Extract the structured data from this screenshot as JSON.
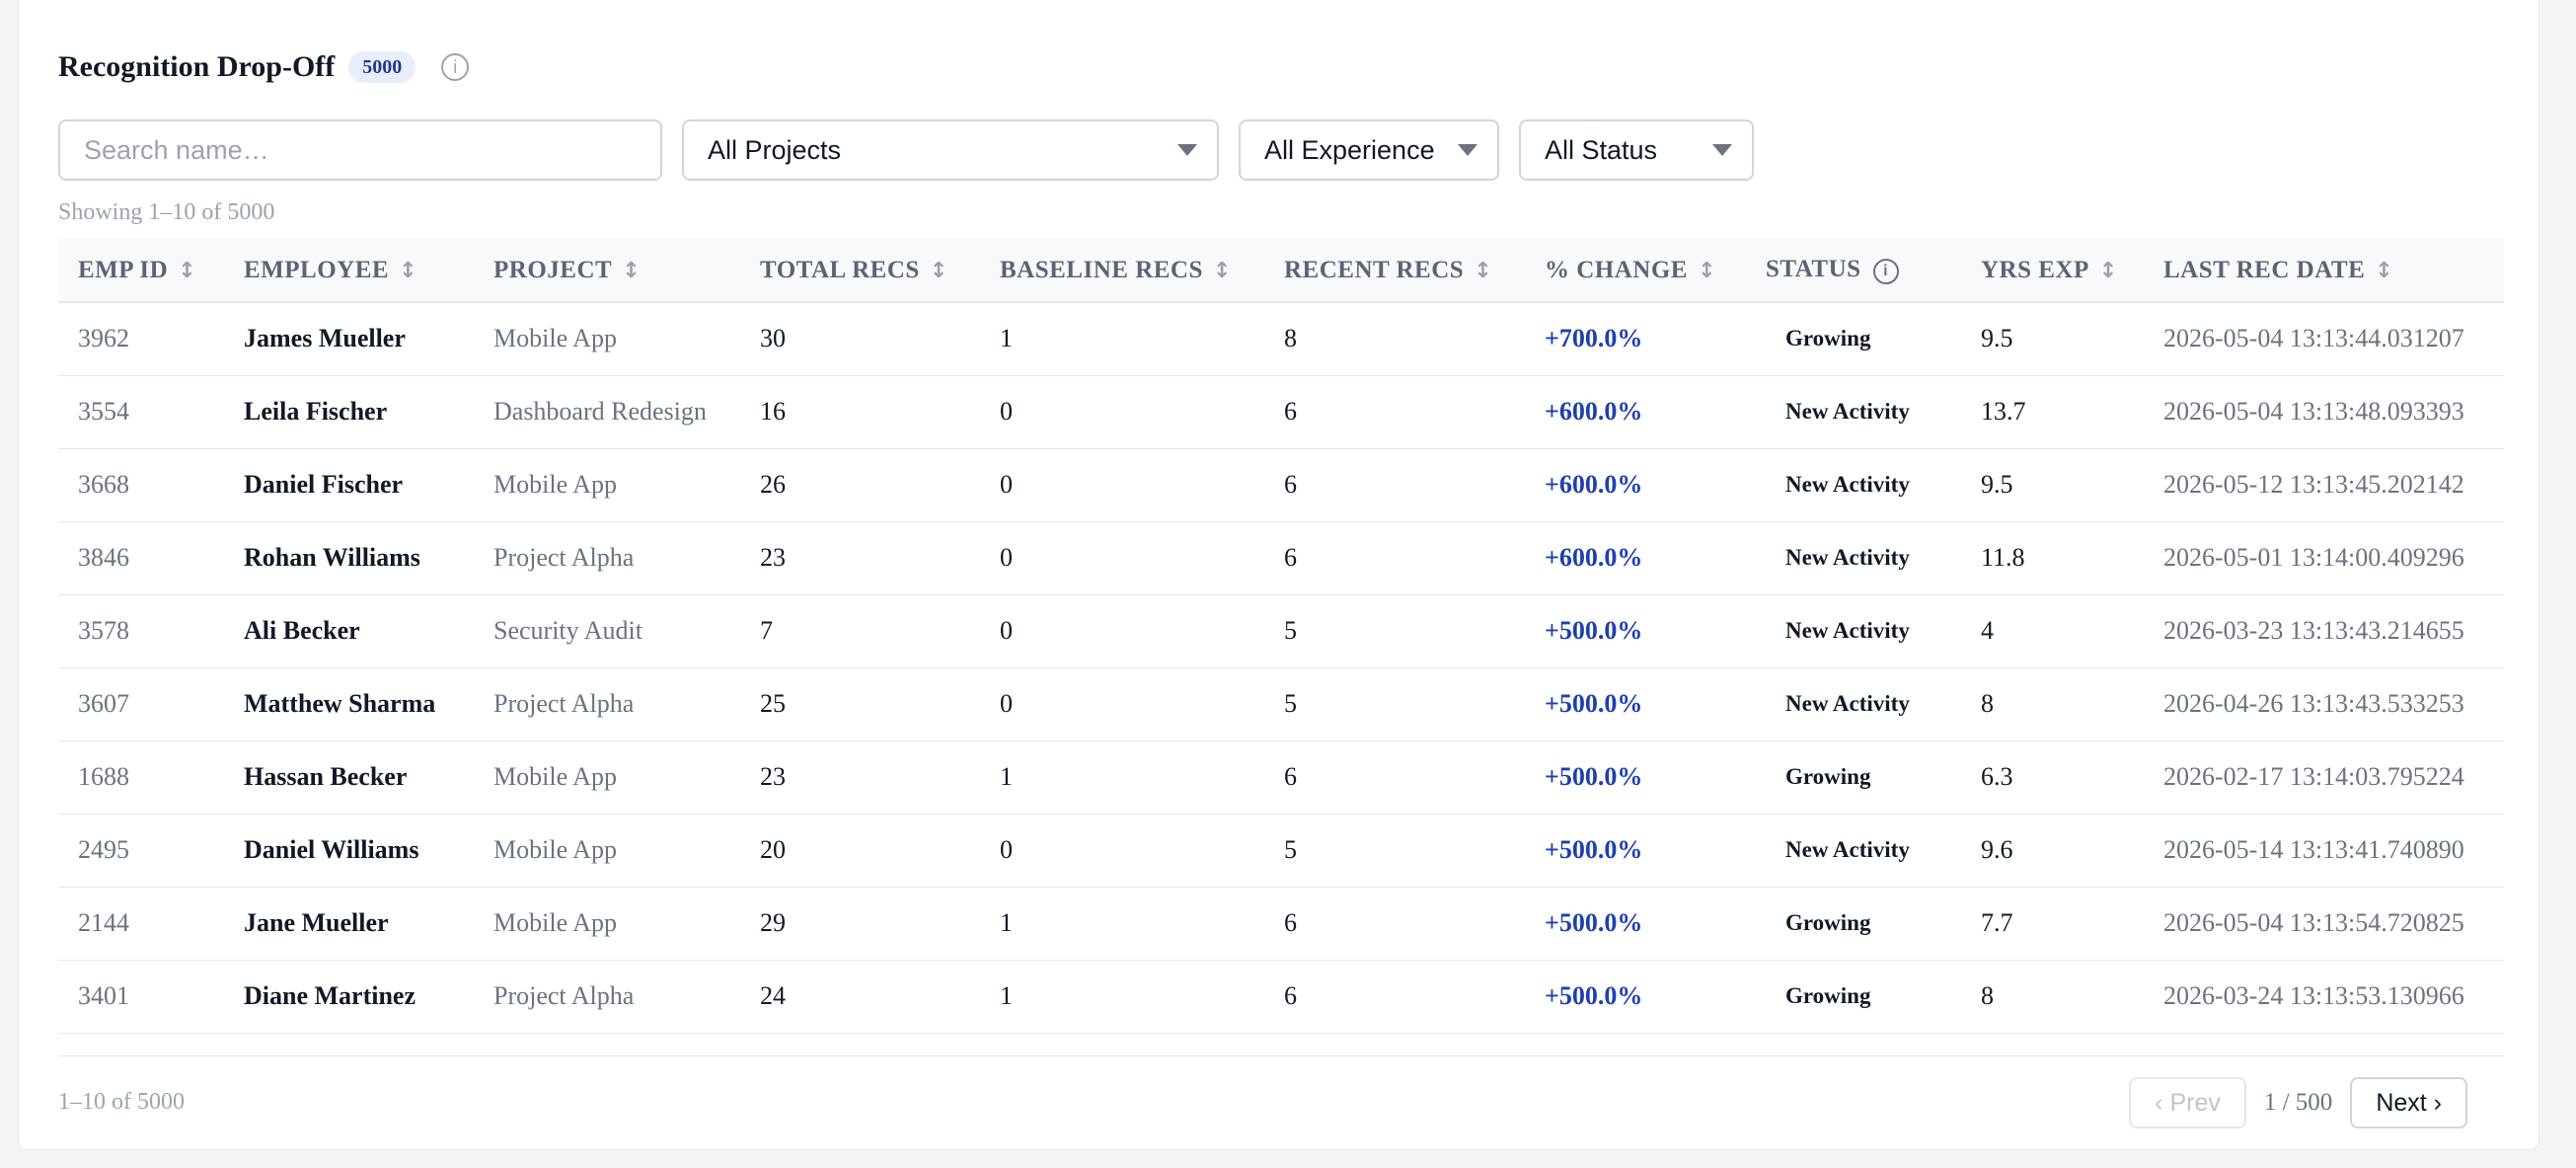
{
  "header": {
    "title": "Recognition Drop-Off",
    "count_badge": "5000",
    "info_icon": "info-icon",
    "info_glyph": "i"
  },
  "filters": {
    "search_placeholder": "Search name…",
    "project_select": "All Projects",
    "experience_select": "All Experience",
    "status_select": "All Status"
  },
  "showing_text": "Showing 1–10 of 5000",
  "table": {
    "columns": [
      "EMP ID",
      "EMPLOYEE",
      "PROJECT",
      "TOTAL RECS",
      "BASELINE RECS",
      "RECENT RECS",
      "% CHANGE",
      "STATUS",
      "YRS EXP",
      "LAST REC DATE"
    ],
    "sort_glyph": "↕",
    "status_info_glyph": "i",
    "rows": [
      {
        "id": "3962",
        "employee": "James Mueller",
        "project": "Mobile App",
        "total": "30",
        "baseline": "1",
        "recent": "8",
        "change": "+700.0%",
        "status": "Growing",
        "yrs": "9.5",
        "date": "2026-05-04 13:13:44.031207"
      },
      {
        "id": "3554",
        "employee": "Leila Fischer",
        "project": "Dashboard Redesign",
        "total": "16",
        "baseline": "0",
        "recent": "6",
        "change": "+600.0%",
        "status": "New Activity",
        "yrs": "13.7",
        "date": "2026-05-04 13:13:48.093393"
      },
      {
        "id": "3668",
        "employee": "Daniel Fischer",
        "project": "Mobile App",
        "total": "26",
        "baseline": "0",
        "recent": "6",
        "change": "+600.0%",
        "status": "New Activity",
        "yrs": "9.5",
        "date": "2026-05-12 13:13:45.202142"
      },
      {
        "id": "3846",
        "employee": "Rohan Williams",
        "project": "Project Alpha",
        "total": "23",
        "baseline": "0",
        "recent": "6",
        "change": "+600.0%",
        "status": "New Activity",
        "yrs": "11.8",
        "date": "2026-05-01 13:14:00.409296"
      },
      {
        "id": "3578",
        "employee": "Ali Becker",
        "project": "Security Audit",
        "total": "7",
        "baseline": "0",
        "recent": "5",
        "change": "+500.0%",
        "status": "New Activity",
        "yrs": "4",
        "date": "2026-03-23 13:13:43.214655"
      },
      {
        "id": "3607",
        "employee": "Matthew Sharma",
        "project": "Project Alpha",
        "total": "25",
        "baseline": "0",
        "recent": "5",
        "change": "+500.0%",
        "status": "New Activity",
        "yrs": "8",
        "date": "2026-04-26 13:13:43.533253"
      },
      {
        "id": "1688",
        "employee": "Hassan Becker",
        "project": "Mobile App",
        "total": "23",
        "baseline": "1",
        "recent": "6",
        "change": "+500.0%",
        "status": "Growing",
        "yrs": "6.3",
        "date": "2026-02-17 13:14:03.795224"
      },
      {
        "id": "2495",
        "employee": "Daniel Williams",
        "project": "Mobile App",
        "total": "20",
        "baseline": "0",
        "recent": "5",
        "change": "+500.0%",
        "status": "New Activity",
        "yrs": "9.6",
        "date": "2026-05-14 13:13:41.740890"
      },
      {
        "id": "2144",
        "employee": "Jane Mueller",
        "project": "Mobile App",
        "total": "29",
        "baseline": "1",
        "recent": "6",
        "change": "+500.0%",
        "status": "Growing",
        "yrs": "7.7",
        "date": "2026-05-04 13:13:54.720825"
      },
      {
        "id": "3401",
        "employee": "Diane Martinez",
        "project": "Project Alpha",
        "total": "24",
        "baseline": "1",
        "recent": "6",
        "change": "+500.0%",
        "status": "Growing",
        "yrs": "8",
        "date": "2026-03-24 13:13:53.130966"
      }
    ]
  },
  "footer": {
    "range_text": "1–10 of 5000",
    "prev_label": "‹ Prev",
    "page_info": "1 / 500",
    "next_label": "Next ›"
  },
  "colors": {
    "accent": "#1e40af",
    "badge_bg": "#e8eefc",
    "muted": "#6b7280"
  }
}
